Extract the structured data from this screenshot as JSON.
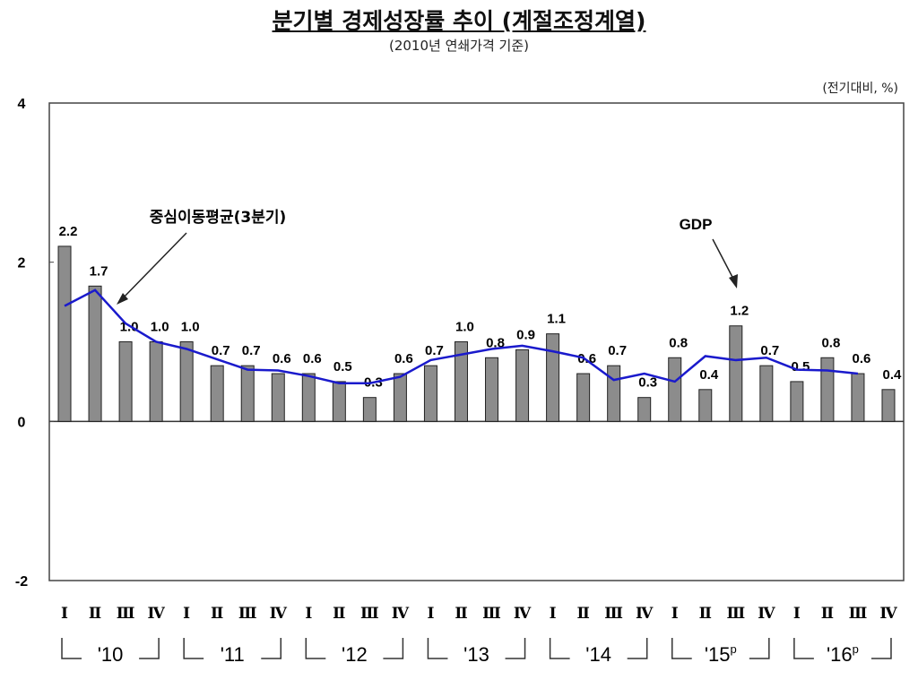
{
  "title": "분기별 경제성장률 추이 (계절조정계열)",
  "subtitle": "(2010년 연쇄가격 기준)",
  "unit": "(전기대비, %)",
  "chart_data": {
    "type": "bar",
    "title": "분기별 경제성장률 추이 (계절조정계열)",
    "ylim": [
      -2,
      4
    ],
    "yticks": [
      "4",
      "2",
      "0",
      "-2"
    ],
    "ytick_values": [
      4,
      2,
      0,
      -2
    ],
    "quarter_labels": [
      "Ⅰ",
      "Ⅱ",
      "Ⅲ",
      "Ⅳ",
      "Ⅰ",
      "Ⅱ",
      "Ⅲ",
      "Ⅳ",
      "Ⅰ",
      "Ⅱ",
      "Ⅲ",
      "Ⅳ",
      "Ⅰ",
      "Ⅱ",
      "Ⅲ",
      "Ⅳ",
      "Ⅰ",
      "Ⅱ",
      "Ⅲ",
      "Ⅳ",
      "Ⅰ",
      "Ⅱ",
      "Ⅲ",
      "Ⅳ",
      "Ⅰ",
      "Ⅱ",
      "Ⅲ",
      "Ⅳ"
    ],
    "years": [
      {
        "label": "'10",
        "sup": ""
      },
      {
        "label": "'11",
        "sup": ""
      },
      {
        "label": "'12",
        "sup": ""
      },
      {
        "label": "'13",
        "sup": ""
      },
      {
        "label": "'14",
        "sup": ""
      },
      {
        "label": "'15",
        "sup": "p"
      },
      {
        "label": "'16",
        "sup": "p"
      }
    ],
    "series": [
      {
        "name": "GDP",
        "type": "bar",
        "color": "#8c8c8c",
        "values": [
          2.2,
          1.7,
          1.0,
          1.0,
          1.0,
          0.7,
          0.7,
          0.6,
          0.6,
          0.5,
          0.3,
          0.6,
          0.7,
          1.0,
          0.8,
          0.9,
          1.1,
          0.6,
          0.7,
          0.3,
          0.8,
          0.4,
          1.2,
          0.7,
          0.5,
          0.8,
          0.6,
          0.4
        ],
        "data_labels": [
          "2.2",
          "1.7",
          "1.0",
          "1.0",
          "1.0",
          "0.7",
          "0.7",
          "0.6",
          "0.6",
          "0.5",
          "0.3",
          "0.6",
          "0.7",
          "1.0",
          "0.8",
          "0.9",
          "1.1",
          "0.6",
          "0.7",
          "0.3",
          "0.8",
          "0.4",
          "1.2",
          "0.7",
          "0.5",
          "0.8",
          "0.6",
          "0.4"
        ]
      },
      {
        "name": "중심이동평균(3분기)",
        "type": "line",
        "color": "#1a1acc",
        "values": [
          1.45,
          1.65,
          1.23,
          1.0,
          0.91,
          0.78,
          0.65,
          0.64,
          0.57,
          0.48,
          0.48,
          0.56,
          0.77,
          0.84,
          0.91,
          0.95,
          0.88,
          0.8,
          0.52,
          0.6,
          0.5,
          0.82,
          0.77,
          0.8,
          0.65,
          0.64,
          0.6
        ]
      }
    ],
    "annotations": [
      "중심이동평균(3분기)",
      "GDP"
    ],
    "grid": false
  }
}
